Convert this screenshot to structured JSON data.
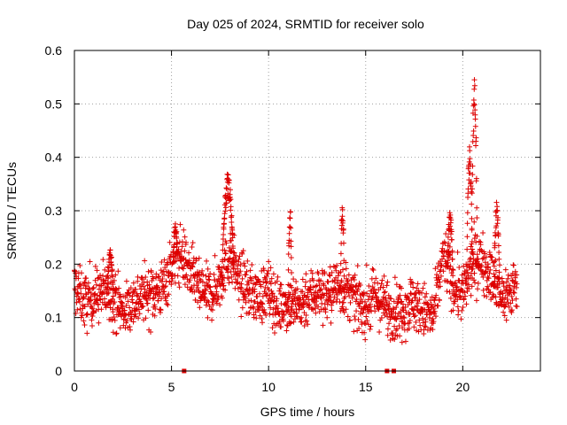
{
  "chart_data": {
    "type": "scatter",
    "title": "Day 025 of 2024, SRMTID for receiver solo",
    "xlabel": "GPS time / hours",
    "ylabel": "SRMTID / TECUs",
    "xlim": [
      0,
      24
    ],
    "ylim": [
      0,
      0.6
    ],
    "x_ticks": [
      0,
      5,
      10,
      15,
      20
    ],
    "x_tick_labels": [
      "0",
      "5",
      "10",
      "15",
      "20"
    ],
    "y_ticks": [
      0,
      0.1,
      0.2,
      0.3,
      0.4,
      0.5,
      0.6
    ],
    "y_tick_labels": [
      "0",
      "0.1",
      "0.2",
      "0.3",
      "0.4",
      "0.5",
      "0.6"
    ],
    "grid": true,
    "marker": "+",
    "color": "#dd0000",
    "zero_markers_x": [
      5.65,
      16.1,
      16.45
    ],
    "trend": {
      "x": [
        0,
        0.5,
        1,
        1.5,
        2,
        2.5,
        3,
        3.5,
        4,
        4.5,
        5,
        5.5,
        6,
        6.5,
        7,
        7.5,
        8,
        8.5,
        9,
        9.5,
        10,
        10.5,
        11,
        11.5,
        12,
        12.5,
        13,
        13.5,
        14,
        14.5,
        15,
        15.5,
        16,
        16.5,
        17,
        17.5,
        18,
        18.5,
        19,
        19.5,
        20,
        20.5,
        21,
        21.5,
        22,
        22.5,
        22.8
      ],
      "y": [
        0.16,
        0.13,
        0.14,
        0.15,
        0.14,
        0.11,
        0.13,
        0.14,
        0.15,
        0.15,
        0.2,
        0.22,
        0.18,
        0.15,
        0.14,
        0.17,
        0.22,
        0.17,
        0.15,
        0.14,
        0.15,
        0.12,
        0.13,
        0.12,
        0.14,
        0.15,
        0.14,
        0.16,
        0.15,
        0.13,
        0.12,
        0.14,
        0.12,
        0.11,
        0.12,
        0.13,
        0.11,
        0.1,
        0.22,
        0.16,
        0.14,
        0.2,
        0.21,
        0.17,
        0.14,
        0.15,
        0.17
      ]
    },
    "spikes": [
      {
        "x": [
          7.6,
          8.2
        ],
        "peak": 0.37
      },
      {
        "x": [
          11.0,
          11.2
        ],
        "peak": 0.32
      },
      {
        "x": [
          13.7,
          13.9
        ],
        "peak": 0.33
      },
      {
        "x": [
          19.2,
          19.5
        ],
        "peak": 0.3
      },
      {
        "x": [
          20.2,
          20.5
        ],
        "peak": 0.43
      },
      {
        "x": [
          20.45,
          20.75
        ],
        "peak": 0.575
      },
      {
        "x": [
          21.6,
          21.9
        ],
        "peak": 0.32
      },
      {
        "x": [
          5.1,
          5.3
        ],
        "peak": 0.28
      },
      {
        "x": [
          1.7,
          2.0
        ],
        "peak": 0.23
      }
    ]
  }
}
